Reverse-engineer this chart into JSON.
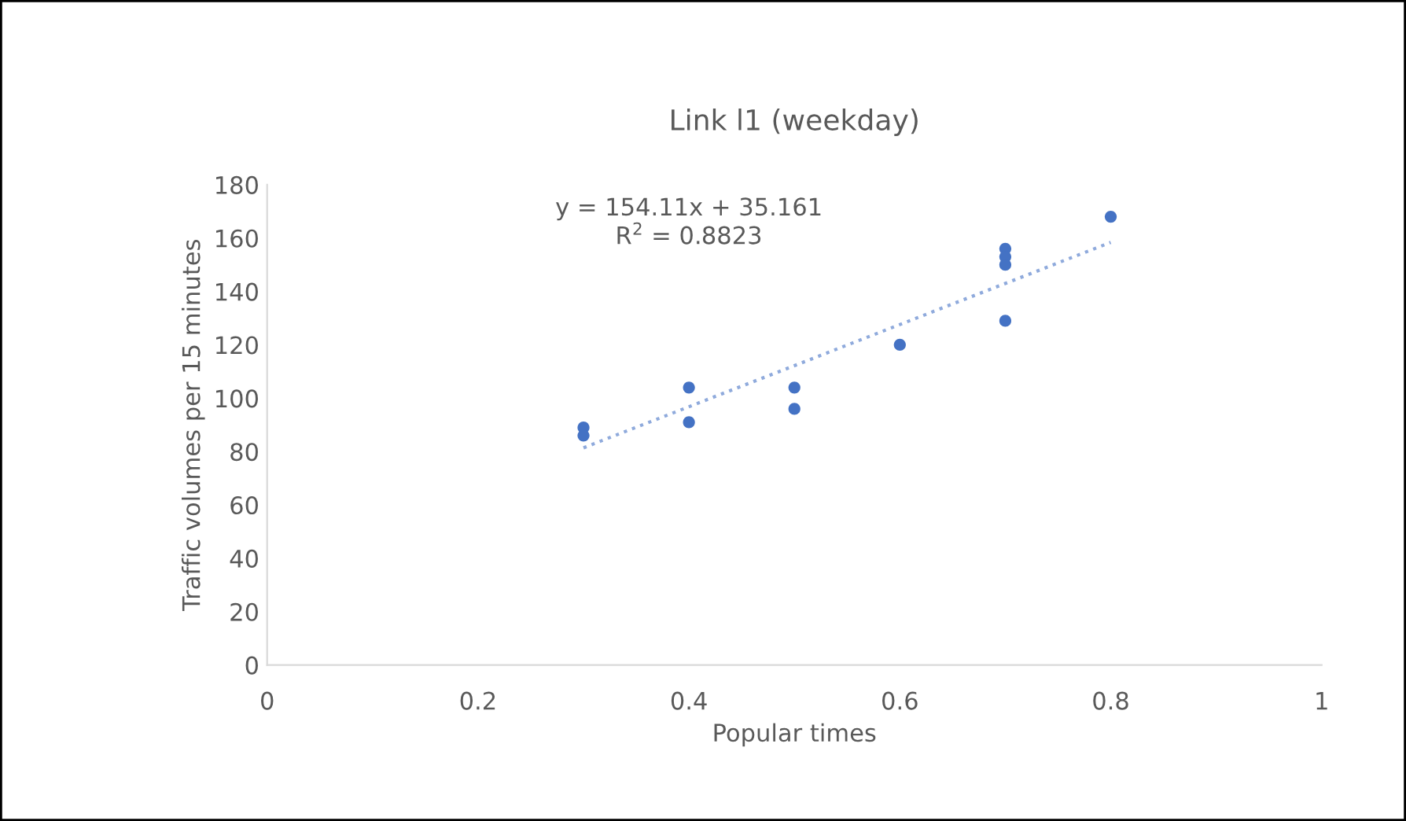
{
  "chart_data": {
    "type": "scatter",
    "title": "Link l1 (weekday)",
    "xlabel": "Popular times",
    "ylabel": "Traffic volumes per 15 minutes",
    "series": [
      {
        "color": "#4472c4",
        "marker": "circle",
        "x": [
          0.3,
          0.3,
          0.4,
          0.4,
          0.5,
          0.5,
          0.6,
          0.7,
          0.7,
          0.7,
          0.7,
          0.8
        ],
        "values": [
          89,
          86,
          104,
          91,
          104,
          96,
          120,
          156,
          153,
          150,
          129,
          168
        ]
      },
      {
        "type": "line",
        "color": "#8faadc",
        "line_style": "dotted",
        "x": [
          0.3,
          0.8
        ],
        "values": [
          81.4,
          158.4
        ]
      }
    ],
    "annotations": [
      "y = 154.11x + 35.161\nR$^{2}$ = 0.8823"
    ],
    "grid": false,
    "legend": false,
    "xlim": [
      0,
      1
    ],
    "xticks": [
      0,
      0.2,
      0.4,
      0.6,
      0.8,
      1
    ],
    "ylim": [
      0,
      180
    ],
    "yticks": [
      0,
      20,
      40,
      60,
      80,
      100,
      120,
      140,
      160,
      180
    ]
  }
}
